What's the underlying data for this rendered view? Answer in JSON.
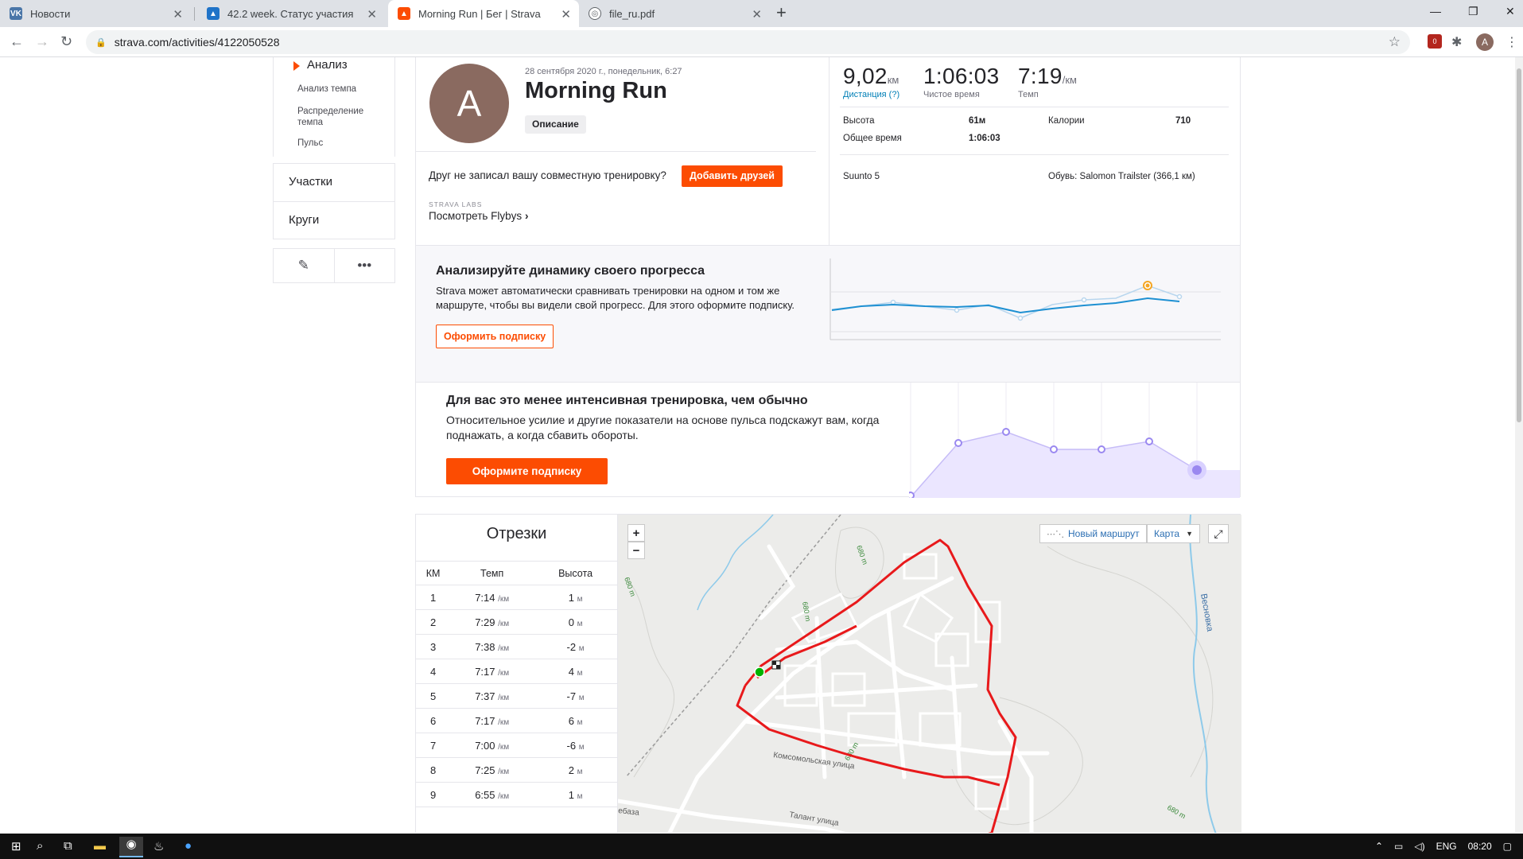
{
  "browser": {
    "tabs": [
      {
        "title": "Новости",
        "icon": "vk-icon",
        "color": "#4a76a8"
      },
      {
        "title": "42.2 week. Статус участия",
        "icon": "trainingpeaks-icon",
        "color": "#1f73c8"
      },
      {
        "title": "Morning Run | Бег | Strava",
        "icon": "strava-icon",
        "color": "#fc4c02",
        "active": true
      },
      {
        "title": "file_ru.pdf",
        "icon": "globe-icon",
        "color": "#5f6368"
      }
    ],
    "url": "strava.com/activities/4122050528",
    "profile_initial": "A",
    "ext_badge": "0"
  },
  "sidenav": {
    "analysis": "Анализ",
    "sub_items": [
      "Анализ темпа",
      "Распределение темпа",
      "Пульс"
    ],
    "items": [
      "Участки",
      "Круги"
    ]
  },
  "activity": {
    "avatar_initial": "A",
    "date": "28 сентября 2020 г., понедельник, 6:27",
    "title": "Morning Run",
    "description_btn": "Описание",
    "friend_question": "Друг не записал вашу совместную тренировку?",
    "add_friends": "Добавить друзей",
    "labs_tag": "STRAVA LABS",
    "flybys": "Посмотреть Flybys"
  },
  "stats": {
    "distance": {
      "value": "9,02",
      "unit": "км",
      "label": "Дистанция (?)"
    },
    "moving_time": {
      "value": "1:06:03",
      "label": "Чистое время"
    },
    "pace": {
      "value": "7:19",
      "unit": "/км",
      "label": "Темп"
    },
    "elevation_label": "Высота",
    "elevation_value": "61м",
    "calories_label": "Калории",
    "calories_value": "710",
    "elapsed_label": "Общее время",
    "elapsed_value": "1:06:03",
    "device": "Suunto 5",
    "shoes": "Обувь: Salomon Trailster (366,1 км)"
  },
  "promo_progress": {
    "title": "Анализируйте динамику своего прогресса",
    "text": "Strava может автоматически сравнивать тренировки на одном и том же маршруте, чтобы вы видели свой прогресс. Для этого оформите подписку.",
    "button": "Оформить подписку"
  },
  "promo_effort": {
    "title": "Для вас это менее интенсивная тренировка, чем обычно",
    "text": "Относительное усилие и другие показатели на основе пульса подскажут вам, когда поднажать, а когда сбавить обороты.",
    "button": "Оформите подписку"
  },
  "splits": {
    "title": "Отрезки",
    "headers": [
      "КМ",
      "Темп",
      "Высота"
    ],
    "pace_unit": "/км",
    "elev_unit": "м",
    "rows": [
      {
        "km": "1",
        "pace": "7:14",
        "elev": "1"
      },
      {
        "km": "2",
        "pace": "7:29",
        "elev": "0"
      },
      {
        "km": "3",
        "pace": "7:38",
        "elev": "-2"
      },
      {
        "km": "4",
        "pace": "7:17",
        "elev": "4"
      },
      {
        "km": "5",
        "pace": "7:37",
        "elev": "-7"
      },
      {
        "km": "6",
        "pace": "7:17",
        "elev": "6"
      },
      {
        "km": "7",
        "pace": "7:00",
        "elev": "-6"
      },
      {
        "km": "8",
        "pace": "7:25",
        "elev": "2"
      },
      {
        "km": "9",
        "pace": "6:55",
        "elev": "1"
      }
    ]
  },
  "map": {
    "zoom_in": "+",
    "zoom_out": "−",
    "new_route": "Новый маршрут",
    "layer": "Карта",
    "labels": [
      "680 m",
      "680 m",
      "680 m",
      "680 m",
      "680 m",
      "Весновка",
      "Комсомольская улица",
      "Талант улица",
      "ебаза"
    ]
  },
  "taskbar": {
    "lang": "ENG",
    "time": "08:20"
  },
  "colors": {
    "accent": "#fc4c02",
    "link": "#007fb6",
    "route": "#e8191b",
    "effort_fill": "#ebe6ff",
    "effort_point": "#9a88f0"
  }
}
